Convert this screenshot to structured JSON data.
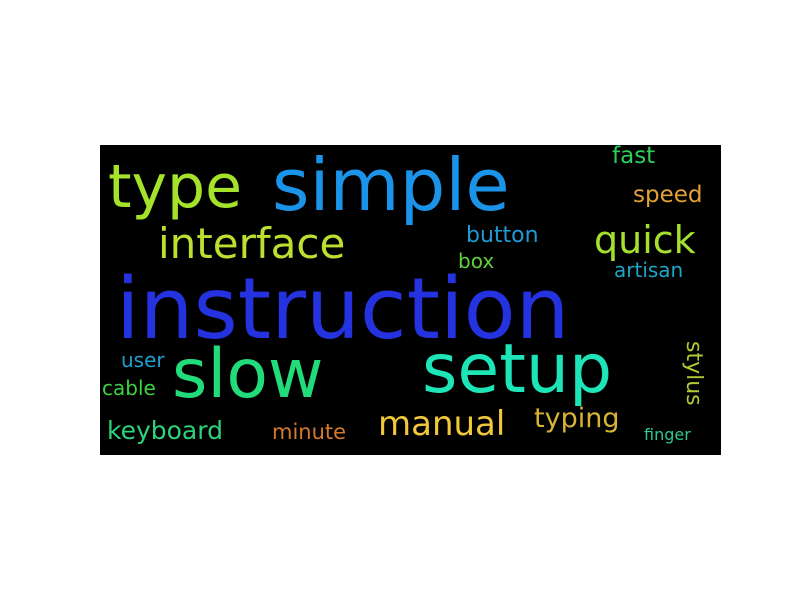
{
  "word_cloud": {
    "background": "#000000",
    "words": [
      {
        "id": "instruction",
        "text": "instruction",
        "color": "#2432e0",
        "orientation": "horizontal"
      },
      {
        "id": "simple",
        "text": "simple",
        "color": "#1b93e8",
        "orientation": "horizontal"
      },
      {
        "id": "slow",
        "text": "slow",
        "color": "#22dc7c",
        "orientation": "horizontal"
      },
      {
        "id": "setup",
        "text": "setup",
        "color": "#1ee5b8",
        "orientation": "horizontal"
      },
      {
        "id": "type",
        "text": "type",
        "color": "#a5e22a",
        "orientation": "horizontal"
      },
      {
        "id": "interface",
        "text": "interface",
        "color": "#bde030",
        "orientation": "horizontal"
      },
      {
        "id": "quick",
        "text": "quick",
        "color": "#a4e02c",
        "orientation": "horizontal"
      },
      {
        "id": "manual",
        "text": "manual",
        "color": "#f0c83a",
        "orientation": "horizontal"
      },
      {
        "id": "typing",
        "text": "typing",
        "color": "#d8b436",
        "orientation": "horizontal"
      },
      {
        "id": "keyboard",
        "text": "keyboard",
        "color": "#2ed27a",
        "orientation": "horizontal"
      },
      {
        "id": "button",
        "text": "button",
        "color": "#1e9ad4",
        "orientation": "horizontal"
      },
      {
        "id": "speed",
        "text": "speed",
        "color": "#e2a236",
        "orientation": "horizontal"
      },
      {
        "id": "fast",
        "text": "fast",
        "color": "#2fcf5e",
        "orientation": "horizontal"
      },
      {
        "id": "stylus",
        "text": "stylus",
        "color": "#b3c837",
        "orientation": "vertical"
      },
      {
        "id": "minute",
        "text": "minute",
        "color": "#d57a2c",
        "orientation": "horizontal"
      },
      {
        "id": "box",
        "text": "box",
        "color": "#5fd13e",
        "orientation": "horizontal"
      },
      {
        "id": "artisan",
        "text": "artisan",
        "color": "#1fa6c6",
        "orientation": "horizontal"
      },
      {
        "id": "cable",
        "text": "cable",
        "color": "#3bd23e",
        "orientation": "horizontal"
      },
      {
        "id": "user",
        "text": "user",
        "color": "#1ea0cf",
        "orientation": "horizontal"
      },
      {
        "id": "finger",
        "text": "finger",
        "color": "#2fc78f",
        "orientation": "horizontal"
      }
    ]
  }
}
